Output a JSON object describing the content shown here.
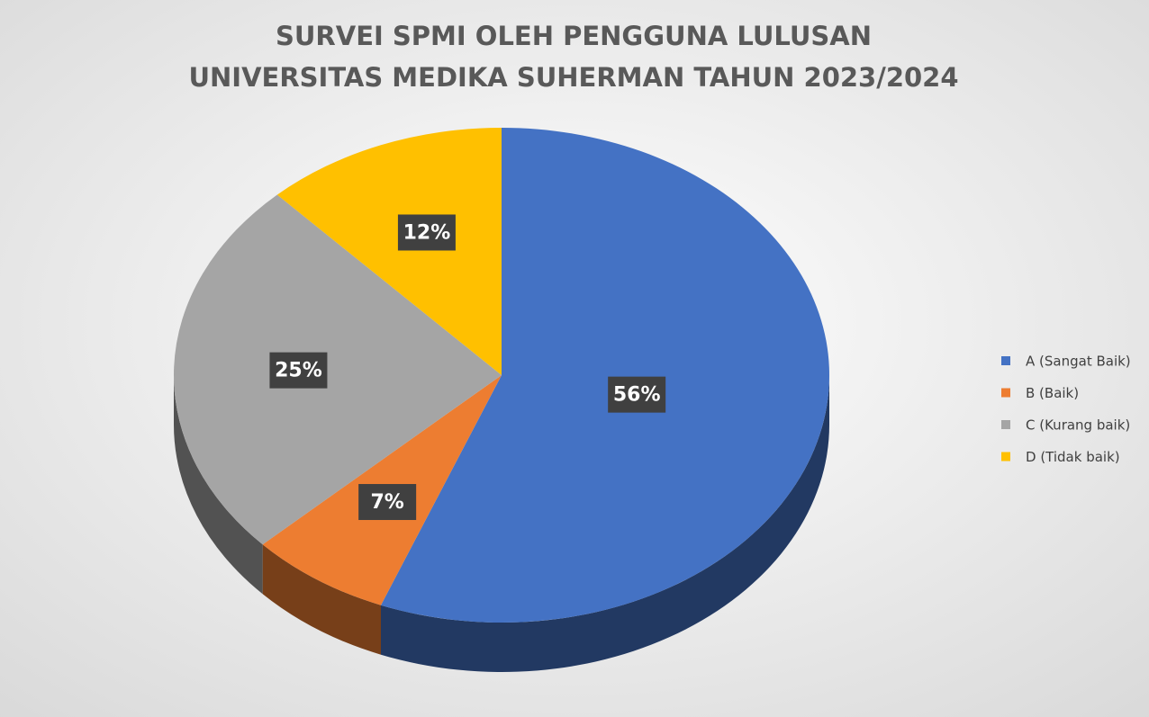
{
  "chart_data": {
    "type": "pie3d",
    "title": [
      "SURVEI SPMI OLEH PENGGUNA LULUSAN",
      "UNIVERSITAS MEDIKA SUHERMAN  TAHUN 2023/2024"
    ],
    "categories": [
      "A (Sangat Baik)",
      "B (Baik)",
      "C (Kurang baik)",
      "D (Tidak baik)"
    ],
    "values": [
      56,
      7,
      25,
      12
    ],
    "value_labels": [
      "56%",
      "7%",
      "25%",
      "12%"
    ],
    "colors": [
      "#4472c4",
      "#ed7d31",
      "#a5a5a5",
      "#ffc000"
    ],
    "legend": "right"
  }
}
